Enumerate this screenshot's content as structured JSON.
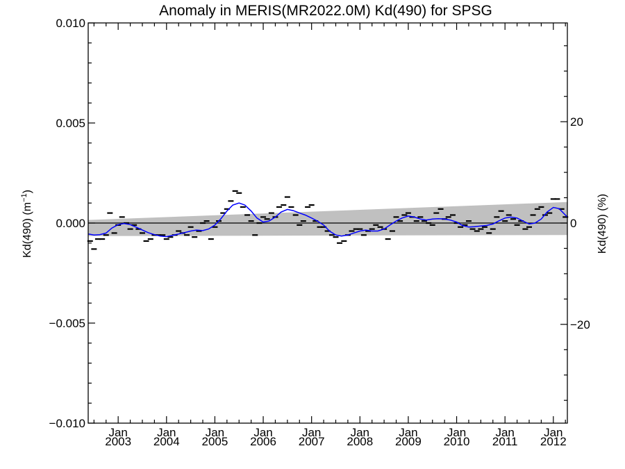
{
  "chart_data": {
    "type": "line",
    "title": "Anomaly in MERIS(MR2022.0M) Kd(490) for SPSG",
    "ylabel_left": "Kd(490) (m",
    "ylabel_left_sup": "−1",
    "ylabel_left_end": ")",
    "ylabel_right": "Kd(490) (%)",
    "ylim": [
      -0.01,
      0.01
    ],
    "y_right_lim": [
      -39.5,
      39.5
    ],
    "xlim": [
      2002.38,
      2012.29
    ],
    "y_ticks": [
      {
        "value": -0.01,
        "label": "−0.010"
      },
      {
        "value": -0.005,
        "label": "−0.005"
      },
      {
        "value": 0.0,
        "label": "0.000"
      },
      {
        "value": 0.005,
        "label": "0.005"
      },
      {
        "value": 0.01,
        "label": "0.010"
      }
    ],
    "y_right_ticks": [
      {
        "value": -20,
        "label": "−20"
      },
      {
        "value": 0,
        "label": "0"
      },
      {
        "value": 20,
        "label": "20"
      }
    ],
    "x_ticks": [
      {
        "value": 2003.0,
        "label1": "Jan",
        "label2": "2003"
      },
      {
        "value": 2004.0,
        "label1": "Jan",
        "label2": "2004"
      },
      {
        "value": 2005.0,
        "label1": "Jan",
        "label2": "2005"
      },
      {
        "value": 2006.0,
        "label1": "Jan",
        "label2": "2006"
      },
      {
        "value": 2007.0,
        "label1": "Jan",
        "label2": "2007"
      },
      {
        "value": 2008.0,
        "label1": "Jan",
        "label2": "2008"
      },
      {
        "value": 2009.0,
        "label1": "Jan",
        "label2": "2009"
      },
      {
        "value": 2010.0,
        "label1": "Jan",
        "label2": "2010"
      },
      {
        "value": 2011.0,
        "label1": "Jan",
        "label2": "2011"
      },
      {
        "value": 2012.0,
        "label1": "Jan",
        "label2": "2012"
      }
    ],
    "band": {
      "x": [
        2002.38,
        2012.29
      ],
      "upper": [
        0.00015,
        0.00105
      ],
      "lower": [
        -0.00065,
        -0.0006
      ],
      "color": "#c0c0c0"
    },
    "zero_line": 0.0,
    "monthly_anomalies": {
      "x": [
        2002.42,
        2002.5,
        2002.58,
        2002.67,
        2002.75,
        2002.83,
        2002.92,
        2003.0,
        2003.08,
        2003.17,
        2003.25,
        2003.33,
        2003.42,
        2003.5,
        2003.58,
        2003.67,
        2003.75,
        2003.83,
        2003.92,
        2004.0,
        2004.08,
        2004.17,
        2004.25,
        2004.33,
        2004.42,
        2004.5,
        2004.58,
        2004.67,
        2004.75,
        2004.83,
        2004.92,
        2005.0,
        2005.08,
        2005.17,
        2005.25,
        2005.33,
        2005.42,
        2005.5,
        2005.58,
        2005.67,
        2005.75,
        2005.83,
        2005.92,
        2006.0,
        2006.08,
        2006.17,
        2006.25,
        2006.33,
        2006.42,
        2006.5,
        2006.58,
        2006.67,
        2006.75,
        2006.83,
        2006.92,
        2007.0,
        2007.08,
        2007.17,
        2007.25,
        2007.33,
        2007.42,
        2007.5,
        2007.58,
        2007.67,
        2007.75,
        2007.83,
        2007.92,
        2008.0,
        2008.08,
        2008.17,
        2008.25,
        2008.33,
        2008.42,
        2008.5,
        2008.58,
        2008.67,
        2008.75,
        2008.83,
        2008.92,
        2009.0,
        2009.08,
        2009.17,
        2009.25,
        2009.33,
        2009.42,
        2009.5,
        2009.58,
        2009.67,
        2009.75,
        2009.83,
        2009.92,
        2010.0,
        2010.08,
        2010.17,
        2010.25,
        2010.33,
        2010.42,
        2010.5,
        2010.58,
        2010.67,
        2010.75,
        2010.83,
        2010.92,
        2011.0,
        2011.08,
        2011.17,
        2011.25,
        2011.33,
        2011.42,
        2011.5,
        2011.58,
        2011.67,
        2011.75,
        2011.83,
        2011.92,
        2012.0,
        2012.08,
        2012.17,
        2012.25
      ],
      "y": [
        -0.0009,
        -0.0013,
        -0.0008,
        -0.0008,
        -0.0006,
        0.0005,
        -0.0005,
        -0.0001,
        0.0003,
        0.0,
        -0.0003,
        -0.0001,
        -0.0003,
        -0.0005,
        -0.0009,
        -0.0008,
        -0.0006,
        -0.0006,
        -0.0006,
        -0.0008,
        -0.0007,
        -0.0006,
        -0.0004,
        -0.0005,
        -0.0006,
        -0.0002,
        -0.0007,
        -0.0004,
        0.0,
        0.0001,
        -0.0008,
        -0.0002,
        0.0001,
        0.0005,
        0.0007,
        0.0011,
        0.0016,
        0.0015,
        0.0008,
        0.0004,
        0.0001,
        -0.0006,
        0.0,
        0.0003,
        0.0002,
        0.0005,
        0.0003,
        0.0008,
        0.0009,
        0.0013,
        0.0008,
        0.0004,
        -0.0001,
        0.0001,
        0.0008,
        0.0009,
        0.0001,
        -0.0002,
        -0.0002,
        -0.0004,
        -0.0006,
        -0.0007,
        -0.001,
        -0.0009,
        -0.0006,
        -0.0004,
        -0.0003,
        -0.0003,
        -0.0006,
        -0.0004,
        -0.0003,
        -0.0001,
        -0.0002,
        -0.0003,
        -0.0008,
        -0.0004,
        0.0003,
        0.0001,
        0.0004,
        0.0005,
        0.0003,
        0.0001,
        0.0003,
        0.0001,
        0.0,
        -0.0001,
        0.0005,
        0.0007,
        0.0002,
        0.0003,
        0.0004,
        0.0,
        -0.0002,
        -0.0001,
        0.0001,
        -0.0003,
        -0.0004,
        -0.0003,
        -0.0002,
        -0.0005,
        -0.0003,
        0.0003,
        0.0006,
        0.0001,
        0.0004,
        0.0002,
        -0.0001,
        0.0001,
        -0.0003,
        -0.0002,
        0.0004,
        0.0007,
        0.0008,
        0.0004,
        0.0005,
        0.0012,
        0.0012,
        0.0007,
        0.0003
      ]
    },
    "smoothed": {
      "color": "#0000ff",
      "x": [
        2002.38,
        2002.5,
        2002.62,
        2002.75,
        2002.87,
        2003.0,
        2003.12,
        2003.25,
        2003.37,
        2003.5,
        2003.62,
        2003.75,
        2003.87,
        2004.0,
        2004.12,
        2004.25,
        2004.37,
        2004.5,
        2004.62,
        2004.75,
        2004.87,
        2005.0,
        2005.12,
        2005.25,
        2005.37,
        2005.5,
        2005.62,
        2005.75,
        2005.87,
        2006.0,
        2006.12,
        2006.25,
        2006.37,
        2006.5,
        2006.62,
        2006.75,
        2006.87,
        2007.0,
        2007.12,
        2007.25,
        2007.37,
        2007.5,
        2007.62,
        2007.75,
        2007.87,
        2008.0,
        2008.12,
        2008.25,
        2008.37,
        2008.5,
        2008.62,
        2008.75,
        2008.87,
        2009.0,
        2009.12,
        2009.25,
        2009.37,
        2009.5,
        2009.62,
        2009.75,
        2009.87,
        2010.0,
        2010.12,
        2010.25,
        2010.37,
        2010.5,
        2010.62,
        2010.75,
        2010.87,
        2011.0,
        2011.12,
        2011.25,
        2011.37,
        2011.5,
        2011.62,
        2011.75,
        2011.87,
        2012.0,
        2012.12,
        2012.29
      ],
      "y": [
        -0.00055,
        -0.0006,
        -0.00058,
        -0.0005,
        -0.00025,
        -8e-05,
        -2e-05,
        -8e-05,
        -0.0002,
        -0.00035,
        -0.00048,
        -0.00058,
        -0.00065,
        -0.00068,
        -0.00062,
        -0.00055,
        -0.00048,
        -0.0004,
        -0.00035,
        -0.00038,
        -0.0003,
        -0.0001,
        0.0002,
        0.0006,
        0.0009,
        0.001,
        0.0009,
        0.0006,
        0.00025,
        5e-05,
        0.0001,
        0.0003,
        0.00055,
        0.00068,
        0.00062,
        0.0005,
        0.0004,
        0.00025,
        0.0001,
        -0.0001,
        -0.0004,
        -0.0006,
        -0.00065,
        -0.0006,
        -0.0005,
        -0.0004,
        -0.00035,
        -0.0004,
        -0.0004,
        -0.0003,
        -0.0001,
        0.0001,
        0.00025,
        0.00035,
        0.0003,
        0.0002,
        0.00015,
        0.0002,
        0.00022,
        0.0002,
        0.00015,
        5e-05,
        -0.00012,
        -0.0002,
        -0.00018,
        -0.00015,
        -0.00012,
        -5e-05,
        0.0001,
        0.00025,
        0.0003,
        0.00025,
        0.0001,
        -5e-05,
        0.0,
        0.0002,
        0.00055,
        0.00078,
        0.00072,
        0.0003
      ]
    }
  }
}
